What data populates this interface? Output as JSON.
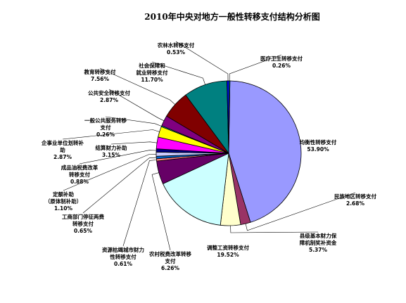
{
  "chart_data": {
    "type": "pie",
    "title": "2010年中央对地方一般性转移支付结构分析图",
    "legend": "none",
    "slices": [
      {
        "name": "均衡性转移支付",
        "value": 53.9,
        "value_label": "53.90%",
        "color": "#9999ff"
      },
      {
        "name": "民族地区转移支付",
        "value": 2.68,
        "value_label": "2.68%",
        "color": "#993366"
      },
      {
        "name": "县级基本财力保障机制奖补资金",
        "value": 5.37,
        "value_label": "5.37%",
        "color": "#ffffcc"
      },
      {
        "name": "调整工资转移支付",
        "value": 19.52,
        "value_label": "19.52%",
        "color": "#ccffff"
      },
      {
        "name": "农村税费改革转移支付",
        "value": 6.26,
        "value_label": "6.26%",
        "color": "#660066"
      },
      {
        "name": "资源枯竭城市财力性转移支付",
        "value": 0.61,
        "value_label": "0.61%",
        "color": "#ff8080"
      },
      {
        "name": "工商部门停征两费转移支付",
        "value": 0.65,
        "value_label": "0.65%",
        "color": "#0066cc"
      },
      {
        "name": "定额补助（原体制补助）",
        "value": 1.1,
        "value_label": "1.10%",
        "color": "#ccccff"
      },
      {
        "name": "成品油税费改革转移支付",
        "value": 0.88,
        "value_label": "0.88%",
        "color": "#000080"
      },
      {
        "name": "结算财力补助",
        "value": 3.15,
        "value_label": "3.15%",
        "color": "#ff00ff"
      },
      {
        "name": "企事业单位划转补助",
        "value": 2.87,
        "value_label": "2.87%",
        "color": "#ffff00"
      },
      {
        "name": "一般公共服务转移支付",
        "value": 0.26,
        "value_label": "0.26%",
        "color": "#00ffff"
      },
      {
        "name": "公共安全转移支付",
        "value": 2.87,
        "value_label": "2.87%",
        "color": "#800080"
      },
      {
        "name": "教育转移支付",
        "value": 7.56,
        "value_label": "7.56%",
        "color": "#800000"
      },
      {
        "name": "社会保障和就业转移支付",
        "value": 11.7,
        "value_label": "11.70%",
        "color": "#008080"
      },
      {
        "name": "农林水转移支付",
        "value": 0.53,
        "value_label": "0.53%",
        "color": "#0000ff"
      },
      {
        "name": "医疗卫生转移支付",
        "value": 0.26,
        "value_label": "0.26%",
        "color": "#00ccff"
      }
    ]
  }
}
